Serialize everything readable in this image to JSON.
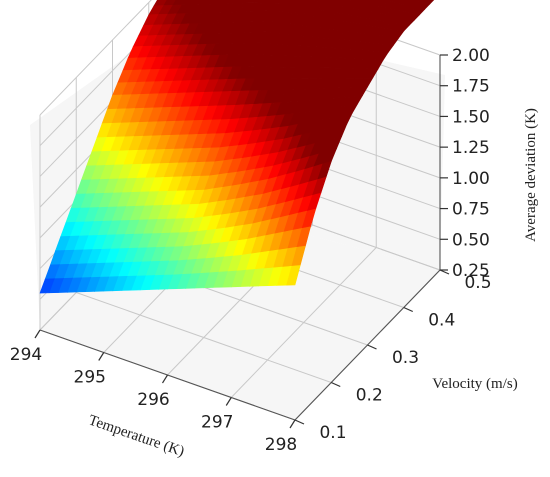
{
  "chart_data": {
    "type": "surface3d",
    "title": "",
    "xlabel": "Temperature (K)",
    "ylabel": "Velocity (m/s)",
    "zlabel": "Average deviation (K)",
    "x_ticks": [
      "294",
      "295",
      "296",
      "297",
      "298"
    ],
    "y_ticks": [
      "0.1",
      "0.2",
      "0.3",
      "0.4",
      "0.5"
    ],
    "z_ticks": [
      "0.25",
      "0.50",
      "0.75",
      "1.00",
      "1.25",
      "1.50",
      "1.75",
      "2.00"
    ],
    "xlim": [
      294,
      298
    ],
    "ylim": [
      0.1,
      0.5
    ],
    "zlim": [
      0.25,
      2.0
    ],
    "colormap": "jet",
    "grid": true,
    "x": [
      294.0,
      294.5,
      295.0,
      295.5,
      296.0,
      296.5,
      297.0,
      297.5,
      298.0
    ],
    "y": [
      0.1,
      0.15,
      0.2,
      0.25,
      0.3,
      0.35,
      0.4,
      0.45,
      0.5
    ],
    "z": [
      [
        0.55,
        0.65,
        0.75,
        0.85,
        0.95,
        1.05,
        1.15,
        1.25,
        1.35
      ],
      [
        0.8,
        0.9,
        1.0,
        1.1,
        1.2,
        1.32,
        1.45,
        1.6,
        1.75
      ],
      [
        1.05,
        1.15,
        1.25,
        1.35,
        1.45,
        1.58,
        1.72,
        1.88,
        2.05
      ],
      [
        1.3,
        1.4,
        1.5,
        1.6,
        1.7,
        1.82,
        1.95,
        2.1,
        2.25
      ],
      [
        1.55,
        1.65,
        1.75,
        1.85,
        1.95,
        2.05,
        2.15,
        2.25,
        2.35
      ],
      [
        1.75,
        1.85,
        1.95,
        2.05,
        2.15,
        2.22,
        2.3,
        2.38,
        2.45
      ],
      [
        1.9,
        2.0,
        2.1,
        2.2,
        2.3,
        2.35,
        2.4,
        2.45,
        2.5
      ],
      [
        2.0,
        2.1,
        2.2,
        2.3,
        2.35,
        2.4,
        2.43,
        2.47,
        2.5
      ],
      [
        2.05,
        2.15,
        2.25,
        2.35,
        2.4,
        2.43,
        2.46,
        2.48,
        2.5
      ]
    ]
  }
}
